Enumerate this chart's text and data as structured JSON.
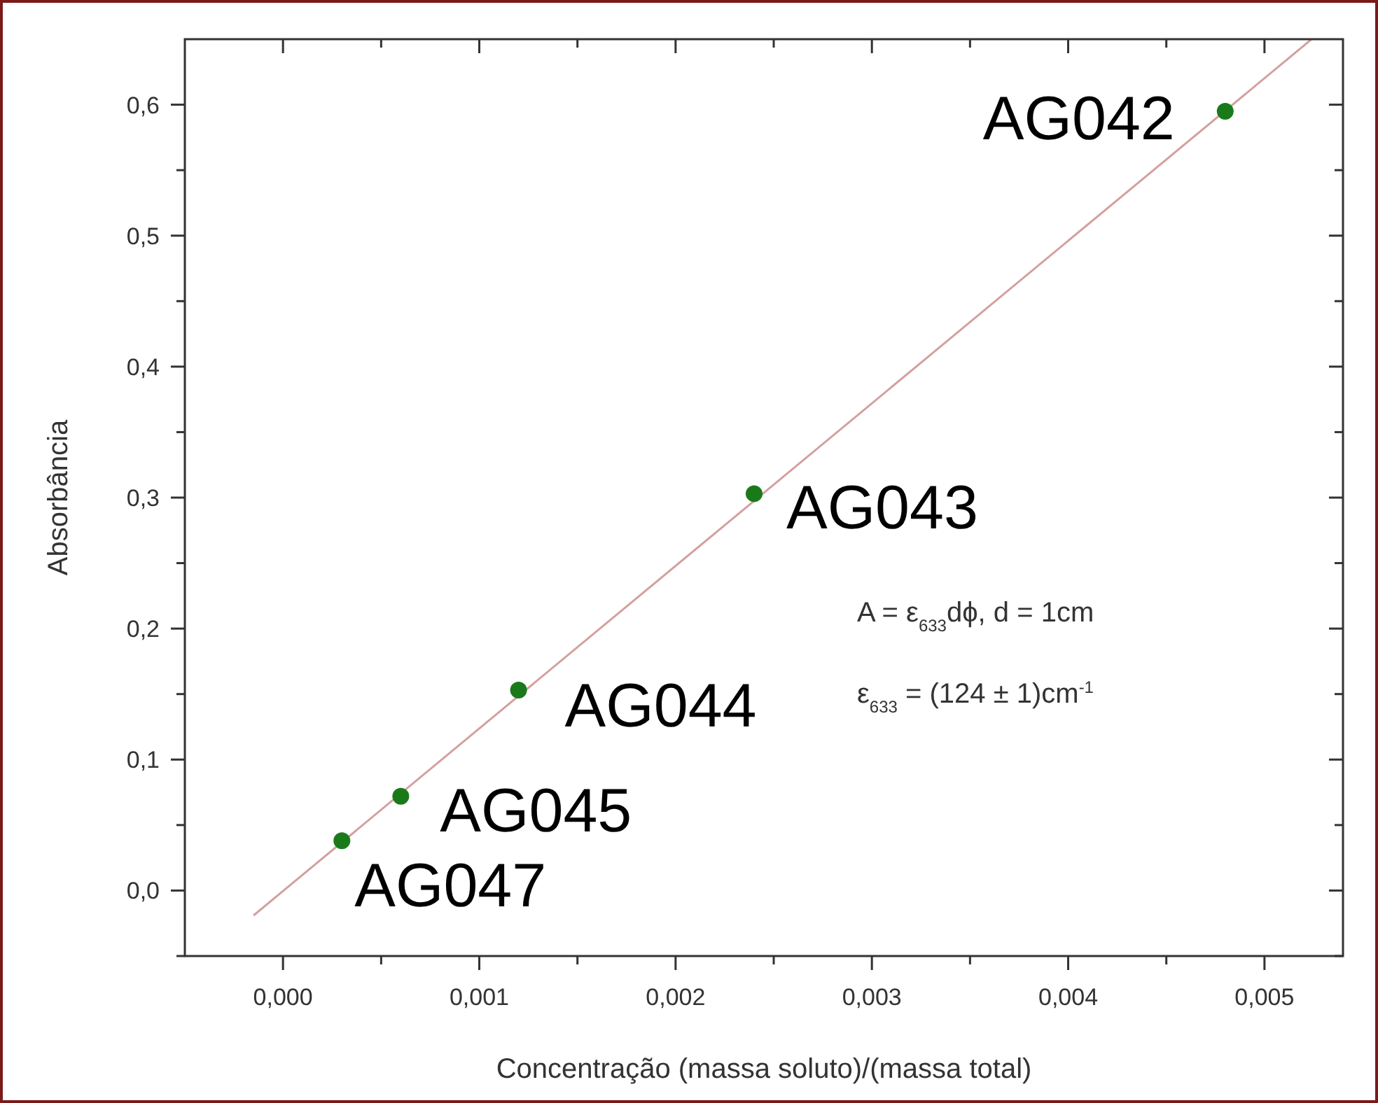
{
  "chart_data": {
    "type": "scatter",
    "xlabel": "Concentração (massa soluto)/(massa total)",
    "ylabel": "Absorbância",
    "grid": false,
    "xlim": [
      -0.0005,
      0.0054
    ],
    "ylim": [
      -0.05,
      0.65
    ],
    "xticks": [
      {
        "value": 0,
        "label": "0,000"
      },
      {
        "value": 0.0005,
        "label": null
      },
      {
        "value": 0.001,
        "label": "0,001"
      },
      {
        "value": 0.0015,
        "label": null
      },
      {
        "value": 0.002,
        "label": "0,002"
      },
      {
        "value": 0.0025,
        "label": null
      },
      {
        "value": 0.003,
        "label": "0,003"
      },
      {
        "value": 0.0035,
        "label": null
      },
      {
        "value": 0.004,
        "label": "0,004"
      },
      {
        "value": 0.0045,
        "label": null
      },
      {
        "value": 0.005,
        "label": "0,005"
      }
    ],
    "yticks": [
      {
        "value": -0.05,
        "label": null
      },
      {
        "value": 0,
        "label": "0,0"
      },
      {
        "value": 0.05,
        "label": null
      },
      {
        "value": 0.1,
        "label": "0,1"
      },
      {
        "value": 0.15,
        "label": null
      },
      {
        "value": 0.2,
        "label": "0,2"
      },
      {
        "value": 0.25,
        "label": null
      },
      {
        "value": 0.3,
        "label": "0,3"
      },
      {
        "value": 0.35,
        "label": null
      },
      {
        "value": 0.4,
        "label": "0,4"
      },
      {
        "value": 0.45,
        "label": null
      },
      {
        "value": 0.5,
        "label": "0,5"
      },
      {
        "value": 0.55,
        "label": null
      },
      {
        "value": 0.6,
        "label": "0,6"
      }
    ],
    "series": [
      {
        "type": "line",
        "color": "#d4a0a0",
        "x": [
          -0.00015,
          0.00524
        ],
        "values": [
          -0.019,
          0.65
        ]
      },
      {
        "marker": "circle",
        "color": "#1a7a1a",
        "x": [
          0.0003,
          0.0006,
          0.0012,
          0.0024,
          0.0048
        ],
        "values": [
          0.038,
          0.072,
          0.153,
          0.303,
          0.595
        ]
      }
    ],
    "annotations": [
      {
        "text": "AG047",
        "x": 0.0003,
        "y": 0.038
      },
      {
        "text": "AG045",
        "x": 0.0006,
        "y": 0.072
      },
      {
        "text": "AG044",
        "x": 0.0012,
        "y": 0.153
      },
      {
        "text": "AG043",
        "x": 0.0024,
        "y": 0.303
      },
      {
        "text": "AG042",
        "x": 0.0048,
        "y": 0.595
      },
      "A = ε$_{633}$dϕ, d = 1cm",
      "ε$_{633}$ = (124 ± 1)cm$^{-1}$"
    ]
  }
}
